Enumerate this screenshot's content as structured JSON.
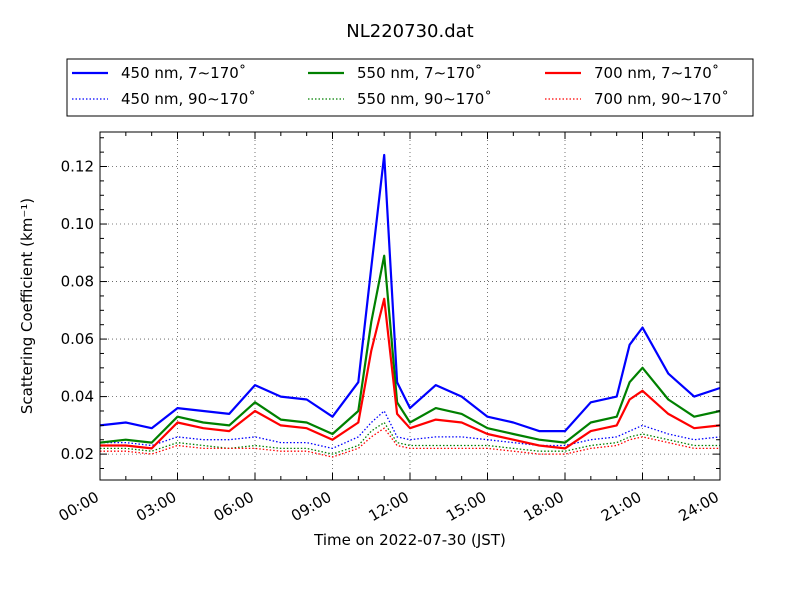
{
  "chart_data": {
    "type": "line",
    "title": "NL220730.dat",
    "xlabel": "Time on 2022-07-30 (JST)",
    "ylabel": "Scattering Coefficient (km⁻¹)",
    "xlim": [
      "00:00",
      "24:00"
    ],
    "ylim": [
      0.011,
      0.132
    ],
    "grid": true,
    "grid_style": "dotted",
    "legend_placement": "top, outside plot, 3 columns",
    "x_ticks": [
      "00:00",
      "03:00",
      "06:00",
      "09:00",
      "12:00",
      "15:00",
      "18:00",
      "21:00",
      "24:00"
    ],
    "y_ticks": [
      "0.02",
      "0.04",
      "0.06",
      "0.08",
      "0.10",
      "0.12"
    ],
    "x": [
      "00:00",
      "01:00",
      "02:00",
      "03:00",
      "04:00",
      "05:00",
      "06:00",
      "07:00",
      "08:00",
      "09:00",
      "10:00",
      "10:30",
      "11:00",
      "11:30",
      "12:00",
      "13:00",
      "14:00",
      "15:00",
      "16:00",
      "17:00",
      "18:00",
      "19:00",
      "20:00",
      "20:30",
      "21:00",
      "22:00",
      "23:00",
      "24:00"
    ],
    "series": [
      {
        "name": "450 nm, 7∼170˚",
        "color": "#0000ff",
        "style": "solid",
        "values": [
          0.03,
          0.031,
          0.029,
          0.036,
          0.035,
          0.034,
          0.044,
          0.04,
          0.039,
          0.033,
          0.045,
          0.085,
          0.124,
          0.045,
          0.036,
          0.044,
          0.04,
          0.033,
          0.031,
          0.028,
          0.028,
          0.038,
          0.04,
          0.058,
          0.064,
          0.048,
          0.04,
          0.043
        ]
      },
      {
        "name": "550 nm, 7∼170˚",
        "color": "#008000",
        "style": "solid",
        "values": [
          0.024,
          0.025,
          0.024,
          0.033,
          0.031,
          0.03,
          0.038,
          0.032,
          0.031,
          0.027,
          0.035,
          0.066,
          0.089,
          0.038,
          0.031,
          0.036,
          0.034,
          0.029,
          0.027,
          0.025,
          0.024,
          0.031,
          0.033,
          0.045,
          0.05,
          0.039,
          0.033,
          0.035
        ]
      },
      {
        "name": "700 nm, 7∼170˚",
        "color": "#ff0000",
        "style": "solid",
        "values": [
          0.023,
          0.023,
          0.022,
          0.031,
          0.029,
          0.028,
          0.035,
          0.03,
          0.029,
          0.025,
          0.031,
          0.056,
          0.074,
          0.034,
          0.029,
          0.032,
          0.031,
          0.027,
          0.025,
          0.023,
          0.022,
          0.028,
          0.03,
          0.039,
          0.042,
          0.034,
          0.029,
          0.03
        ]
      },
      {
        "name": "450 nm, 90∼170˚",
        "color": "#0000ff",
        "style": "dotted",
        "values": [
          0.024,
          0.024,
          0.023,
          0.026,
          0.025,
          0.025,
          0.026,
          0.024,
          0.024,
          0.022,
          0.026,
          0.031,
          0.035,
          0.026,
          0.025,
          0.026,
          0.026,
          0.025,
          0.024,
          0.023,
          0.023,
          0.025,
          0.026,
          0.028,
          0.03,
          0.027,
          0.025,
          0.026
        ]
      },
      {
        "name": "550 nm, 90∼170˚",
        "color": "#008000",
        "style": "dotted",
        "values": [
          0.022,
          0.022,
          0.021,
          0.024,
          0.023,
          0.022,
          0.023,
          0.022,
          0.022,
          0.02,
          0.023,
          0.028,
          0.031,
          0.024,
          0.023,
          0.023,
          0.023,
          0.023,
          0.022,
          0.021,
          0.021,
          0.023,
          0.024,
          0.026,
          0.027,
          0.025,
          0.023,
          0.023
        ]
      },
      {
        "name": "700 nm, 90∼170˚",
        "color": "#ff0000",
        "style": "dotted",
        "values": [
          0.021,
          0.021,
          0.02,
          0.023,
          0.022,
          0.022,
          0.022,
          0.021,
          0.021,
          0.019,
          0.022,
          0.026,
          0.029,
          0.023,
          0.022,
          0.022,
          0.022,
          0.022,
          0.021,
          0.02,
          0.02,
          0.022,
          0.023,
          0.025,
          0.026,
          0.024,
          0.022,
          0.022
        ]
      }
    ]
  }
}
